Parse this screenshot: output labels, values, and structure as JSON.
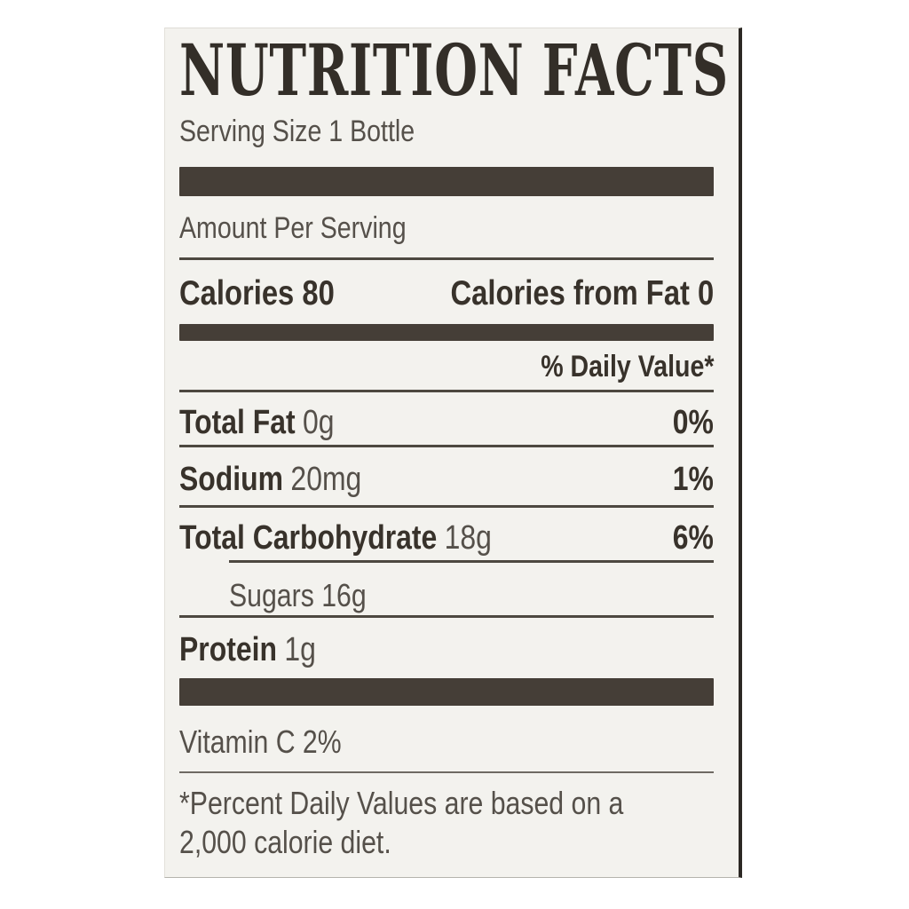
{
  "nutrition_label": {
    "title": "NUTRITION FACTS",
    "serving_size": "Serving Size 1 Bottle",
    "amount_per_serving": "Amount Per Serving",
    "calories_row": {
      "left": "Calories 80",
      "right": "Calories from Fat 0"
    },
    "daily_value_header": "% Daily Value*",
    "nutrients": [
      {
        "name": "Total Fat",
        "amount": "0g",
        "dv": "0%"
      },
      {
        "name": "Sodium",
        "amount": "20mg",
        "dv": "1%"
      },
      {
        "name": "Total Carbohydrate",
        "amount": "18g",
        "dv": "6%"
      },
      {
        "name": "Sugars",
        "amount": "16g",
        "dv": ""
      },
      {
        "name": "Protein",
        "amount": "1g",
        "dv": ""
      }
    ],
    "vitamins": "Vitamin C 2%",
    "footnote_line1": "*Percent Daily Values are based on a",
    "footnote_line2": "2,000 calorie diet.",
    "colors": {
      "card_background": "#f3f2ee",
      "separator_bar": "#453e37",
      "bold_text": "#38322b",
      "regular_text": "#55504a",
      "right_border": "#2c2824"
    }
  }
}
